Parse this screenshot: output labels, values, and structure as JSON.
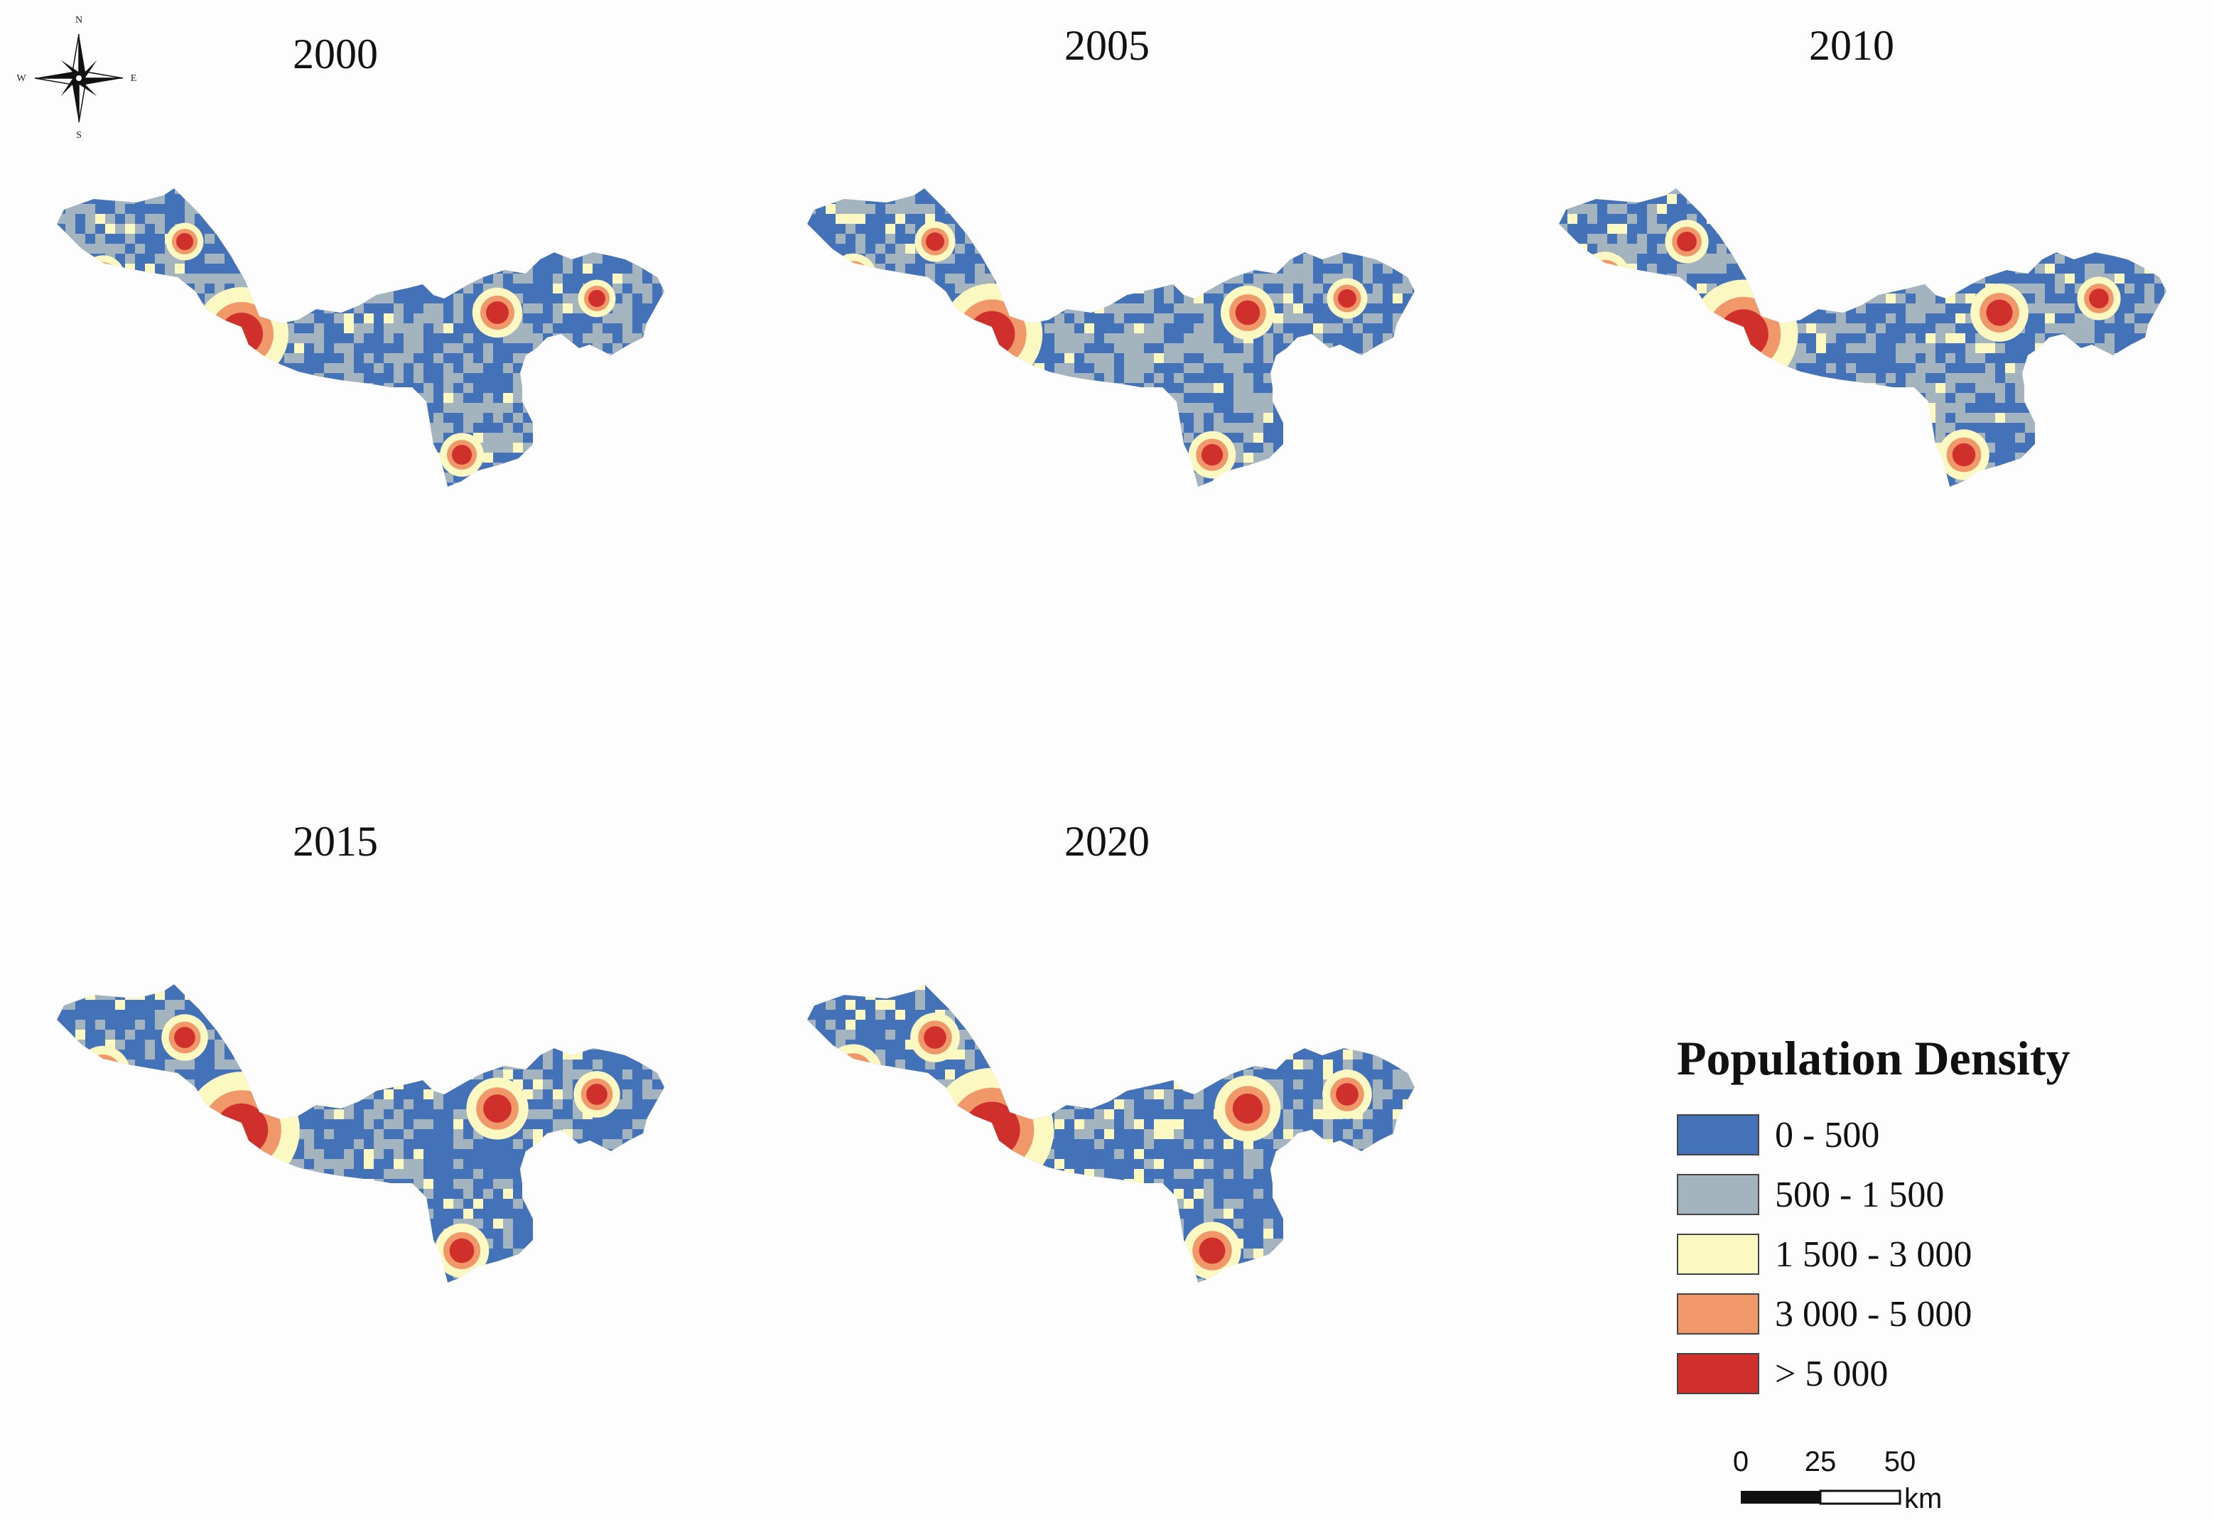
{
  "compass": {
    "north": "N",
    "south": "S",
    "east": "E",
    "west": "W"
  },
  "maps": [
    {
      "year": "2000"
    },
    {
      "year": "2005"
    },
    {
      "year": "2010"
    },
    {
      "year": "2015"
    },
    {
      "year": "2020"
    }
  ],
  "legend": {
    "title": "Population Density",
    "classes": [
      {
        "label": "0 - 500",
        "color": "#4472b8"
      },
      {
        "label": "500 - 1 500",
        "color": "#a3b4be"
      },
      {
        "label": "1 500 - 3 000",
        "color": "#fbf8c2"
      },
      {
        "label": "3 000 - 5 000",
        "color": "#f0986a"
      },
      {
        "label": "> 5 000",
        "color": "#d0302b"
      }
    ]
  },
  "scale_bar": {
    "ticks": [
      "0",
      "25",
      "50"
    ],
    "unit": "km"
  }
}
